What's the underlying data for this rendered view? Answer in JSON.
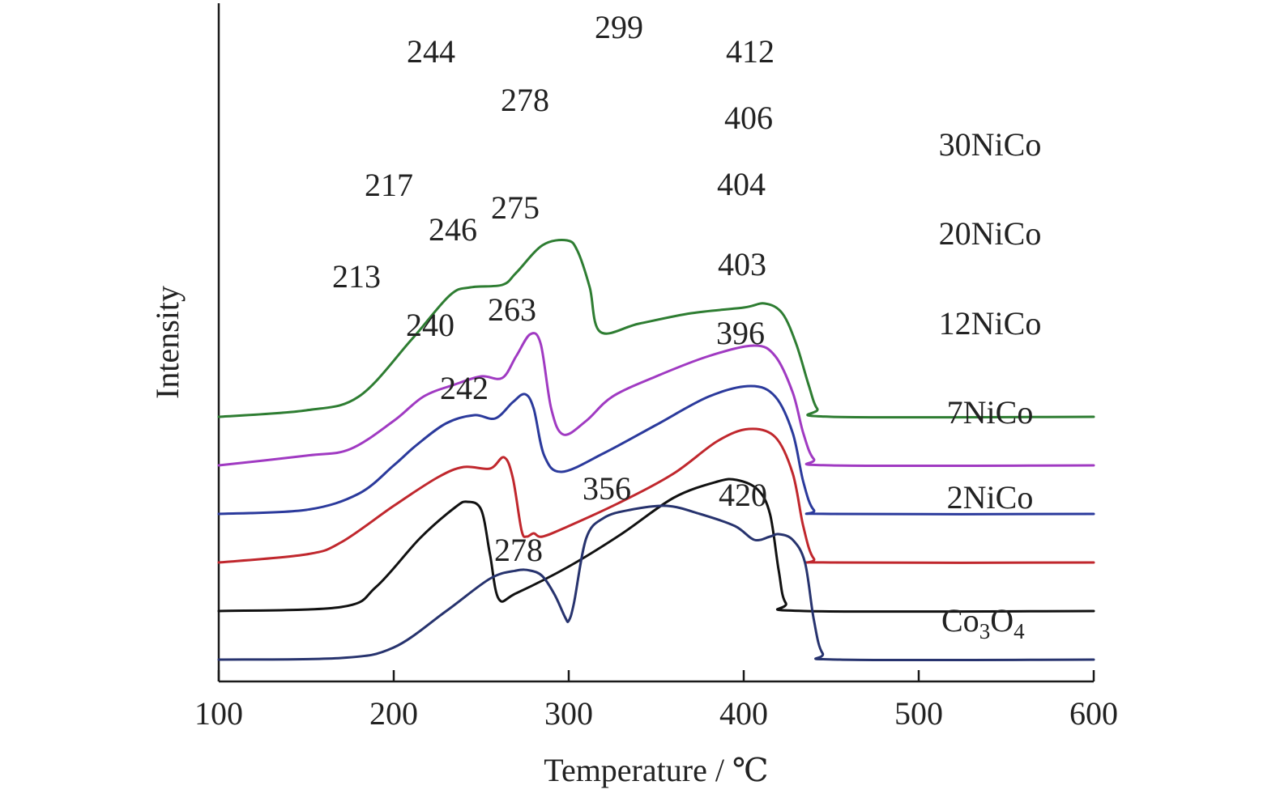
{
  "chart_data": {
    "type": "line",
    "title": "",
    "xlabel": "Temperature / ℃",
    "ylabel": "Intensity",
    "xlim": [
      100,
      600
    ],
    "xticks": [
      100,
      200,
      300,
      400,
      500,
      600
    ],
    "grid": false,
    "y_ticks_shown": false,
    "series": [
      {
        "name": "30NiCo",
        "color": "#2e7d32",
        "offset": 300,
        "points": [
          [
            100,
            0
          ],
          [
            150,
            8
          ],
          [
            180,
            25
          ],
          [
            210,
            95
          ],
          [
            232,
            150
          ],
          [
            244,
            160
          ],
          [
            262,
            163
          ],
          [
            270,
            178
          ],
          [
            285,
            212
          ],
          [
            299,
            218
          ],
          [
            305,
            205
          ],
          [
            312,
            160
          ],
          [
            318,
            105
          ],
          [
            340,
            115
          ],
          [
            370,
            128
          ],
          [
            400,
            135
          ],
          [
            412,
            140
          ],
          [
            422,
            128
          ],
          [
            430,
            90
          ],
          [
            437,
            40
          ],
          [
            442,
            10
          ],
          [
            450,
            0
          ],
          [
            600,
            0
          ]
        ],
        "peaks": [
          {
            "x": 244,
            "label": "244"
          },
          {
            "x": 299,
            "label": "299"
          },
          {
            "x": 412,
            "label": "412"
          }
        ]
      },
      {
        "name": "20NiCo",
        "color": "#a03ac2",
        "offset": 240,
        "points": [
          [
            100,
            0
          ],
          [
            150,
            12
          ],
          [
            175,
            20
          ],
          [
            200,
            55
          ],
          [
            217,
            85
          ],
          [
            235,
            100
          ],
          [
            250,
            110
          ],
          [
            262,
            108
          ],
          [
            270,
            135
          ],
          [
            278,
            162
          ],
          [
            284,
            150
          ],
          [
            290,
            70
          ],
          [
            297,
            38
          ],
          [
            310,
            55
          ],
          [
            325,
            85
          ],
          [
            350,
            110
          ],
          [
            380,
            135
          ],
          [
            406,
            148
          ],
          [
            418,
            135
          ],
          [
            428,
            90
          ],
          [
            434,
            40
          ],
          [
            440,
            8
          ],
          [
            450,
            0
          ],
          [
            600,
            0
          ]
        ],
        "peaks": [
          {
            "x": 217,
            "label": "217"
          },
          {
            "x": 278,
            "label": "278"
          },
          {
            "x": 406,
            "label": "406"
          }
        ]
      },
      {
        "name": "12NiCo",
        "color": "#2b3a9c",
        "offset": 180,
        "points": [
          [
            100,
            0
          ],
          [
            150,
            5
          ],
          [
            180,
            25
          ],
          [
            200,
            60
          ],
          [
            213,
            85
          ],
          [
            230,
            112
          ],
          [
            246,
            122
          ],
          [
            258,
            118
          ],
          [
            268,
            138
          ],
          [
            275,
            148
          ],
          [
            280,
            130
          ],
          [
            286,
            72
          ],
          [
            296,
            52
          ],
          [
            320,
            75
          ],
          [
            350,
            110
          ],
          [
            380,
            145
          ],
          [
            404,
            158
          ],
          [
            418,
            145
          ],
          [
            428,
            100
          ],
          [
            434,
            40
          ],
          [
            440,
            5
          ],
          [
            450,
            0
          ],
          [
            600,
            0
          ]
        ],
        "peaks": [
          {
            "x": 213,
            "label": "213"
          },
          {
            "x": 246,
            "label": "246"
          },
          {
            "x": 275,
            "label": "275"
          },
          {
            "x": 404,
            "label": "404"
          }
        ]
      },
      {
        "name": "7NiCo",
        "color": "#c0272d",
        "offset": 120,
        "points": [
          [
            100,
            0
          ],
          [
            150,
            10
          ],
          [
            170,
            25
          ],
          [
            200,
            70
          ],
          [
            225,
            105
          ],
          [
            240,
            118
          ],
          [
            255,
            116
          ],
          [
            263,
            130
          ],
          [
            268,
            105
          ],
          [
            273,
            40
          ],
          [
            276,
            32
          ],
          [
            280,
            36
          ],
          [
            285,
            32
          ],
          [
            300,
            45
          ],
          [
            330,
            75
          ],
          [
            360,
            110
          ],
          [
            385,
            150
          ],
          [
            403,
            165
          ],
          [
            418,
            155
          ],
          [
            428,
            110
          ],
          [
            434,
            45
          ],
          [
            440,
            5
          ],
          [
            450,
            0
          ],
          [
            600,
            0
          ]
        ],
        "peaks": [
          {
            "x": 240,
            "label": "240"
          },
          {
            "x": 263,
            "label": "263"
          },
          {
            "x": 403,
            "label": "403"
          },
          {
            "x": 396,
            "label": "396"
          }
        ]
      },
      {
        "name": "2NiCo",
        "color": "#111111",
        "offset": 60,
        "points": [
          [
            100,
            0
          ],
          [
            170,
            5
          ],
          [
            190,
            30
          ],
          [
            215,
            90
          ],
          [
            235,
            128
          ],
          [
            242,
            135
          ],
          [
            250,
            125
          ],
          [
            255,
            70
          ],
          [
            260,
            15
          ],
          [
            270,
            22
          ],
          [
            300,
            55
          ],
          [
            330,
            95
          ],
          [
            360,
            140
          ],
          [
            385,
            160
          ],
          [
            396,
            162
          ],
          [
            408,
            150
          ],
          [
            415,
            120
          ],
          [
            420,
            50
          ],
          [
            424,
            10
          ],
          [
            435,
            0
          ],
          [
            600,
            0
          ]
        ],
        "peaks": [
          {
            "x": 242,
            "label": "242"
          }
        ]
      },
      {
        "name": "Co3O4",
        "color": "#27336e",
        "offset": 0,
        "points": [
          [
            100,
            0
          ],
          [
            170,
            2
          ],
          [
            200,
            15
          ],
          [
            230,
            60
          ],
          [
            255,
            100
          ],
          [
            270,
            110
          ],
          [
            278,
            110
          ],
          [
            285,
            103
          ],
          [
            292,
            80
          ],
          [
            298,
            52
          ],
          [
            300,
            48
          ],
          [
            303,
            70
          ],
          [
            310,
            150
          ],
          [
            320,
            175
          ],
          [
            335,
            185
          ],
          [
            356,
            190
          ],
          [
            375,
            180
          ],
          [
            395,
            165
          ],
          [
            406,
            148
          ],
          [
            415,
            152
          ],
          [
            420,
            155
          ],
          [
            428,
            148
          ],
          [
            435,
            120
          ],
          [
            440,
            50
          ],
          [
            445,
            8
          ],
          [
            455,
            0
          ],
          [
            600,
            0
          ]
        ],
        "peaks": [
          {
            "x": 278,
            "label": "278"
          },
          {
            "x": 356,
            "label": "356"
          },
          {
            "x": 420,
            "label": "420"
          }
        ]
      }
    ],
    "series_labels": [
      "30NiCo",
      "20NiCo",
      "12NiCo",
      "7NiCo",
      "2NiCo",
      "Co",
      "3",
      "O",
      "4"
    ]
  }
}
